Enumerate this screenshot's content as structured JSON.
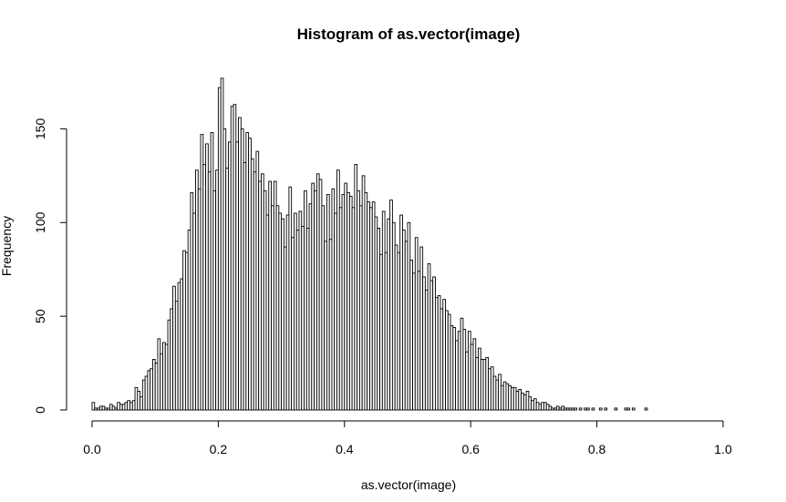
{
  "chart_data": {
    "type": "bar",
    "title": "Histogram of as.vector(image)",
    "xlabel": "as.vector(image)",
    "ylabel": "Frequency",
    "xlim": [
      0,
      1
    ],
    "ylim": [
      0,
      175
    ],
    "x_ticks": [
      0.0,
      0.2,
      0.4,
      0.6,
      0.8,
      1.0
    ],
    "x_tick_labels": [
      "0.0",
      "0.2",
      "0.4",
      "0.6",
      "0.8",
      "1.0"
    ],
    "y_ticks": [
      0,
      50,
      100,
      150
    ],
    "y_tick_labels": [
      "0",
      "50",
      "100",
      "150"
    ],
    "bin_width": 0.004,
    "bin_start": 0.0,
    "bar_fill": "#ffffff",
    "bar_stroke": "#000000",
    "values": [
      4,
      1,
      1,
      2,
      2,
      1,
      1,
      3,
      2,
      1,
      4,
      3,
      3,
      4,
      5,
      4,
      5,
      12,
      10,
      7,
      16,
      18,
      21,
      22,
      27,
      25,
      38,
      30,
      36,
      35,
      48,
      54,
      66,
      58,
      68,
      70,
      85,
      84,
      96,
      116,
      105,
      128,
      118,
      147,
      131,
      142,
      127,
      148,
      117,
      128,
      172,
      177,
      150,
      129,
      143,
      162,
      163,
      143,
      156,
      150,
      132,
      148,
      145,
      134,
      127,
      138,
      122,
      126,
      117,
      104,
      122,
      109,
      122,
      109,
      105,
      102,
      87,
      104,
      119,
      92,
      105,
      96,
      106,
      98,
      117,
      97,
      110,
      121,
      117,
      126,
      123,
      109,
      90,
      115,
      91,
      118,
      105,
      128,
      108,
      115,
      121,
      116,
      114,
      108,
      131,
      117,
      109,
      125,
      116,
      111,
      108,
      111,
      103,
      97,
      83,
      106,
      84,
      102,
      112,
      100,
      88,
      84,
      104,
      96,
      90,
      100,
      80,
      73,
      92,
      74,
      87,
      71,
      64,
      78,
      69,
      71,
      60,
      61,
      54,
      59,
      53,
      51,
      45,
      44,
      37,
      42,
      49,
      43,
      31,
      42,
      35,
      38,
      28,
      33,
      27,
      27,
      28,
      22,
      23,
      18,
      16,
      19,
      13,
      15,
      14,
      13,
      12,
      12,
      10,
      11,
      9,
      8,
      10,
      7,
      5,
      6,
      4,
      3,
      4,
      4,
      3,
      2,
      1,
      1,
      2,
      1,
      2,
      1,
      1,
      1,
      1,
      1,
      0,
      1,
      0,
      1,
      1,
      0,
      1,
      0,
      0,
      1,
      0,
      1,
      0,
      0,
      0,
      1,
      0,
      0,
      0,
      1,
      1,
      0,
      1,
      0,
      0,
      0,
      0,
      1
    ]
  }
}
